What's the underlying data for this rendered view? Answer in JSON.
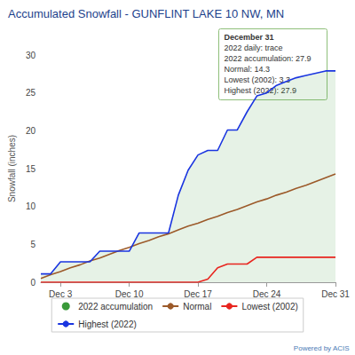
{
  "chart_data": {
    "type": "line",
    "title": "Accumulated Snowfall - GUNFLINT LAKE 10 NW, MN",
    "y_label": "Snowfall (inches)",
    "categories": [
      null,
      null,
      "Dec 3",
      null,
      null,
      null,
      null,
      null,
      null,
      "Dec 10",
      null,
      null,
      null,
      null,
      null,
      null,
      "Dec 17",
      null,
      null,
      null,
      null,
      null,
      null,
      "Dec 24",
      null,
      null,
      null,
      null,
      null,
      null,
      "Dec 31"
    ],
    "series": [
      {
        "name": "2022 accumulation",
        "type": "area",
        "color": "#3a9a3a",
        "values": [
          1.1,
          1.1,
          2.7,
          2.7,
          2.7,
          2.7,
          4.1,
          4.1,
          4.1,
          4.1,
          6.5,
          6.5,
          6.5,
          6.5,
          11.5,
          14.8,
          16.8,
          17.4,
          17.4,
          20.1,
          20.1,
          22.5,
          24.6,
          25.0,
          26.0,
          26.5,
          27.0,
          27.3,
          27.6,
          27.9,
          27.9
        ]
      },
      {
        "name": "Normal",
        "type": "line",
        "color": "#9c5a2a",
        "values": [
          0.5,
          1.0,
          1.4,
          1.9,
          2.3,
          2.8,
          3.2,
          3.7,
          4.2,
          4.6,
          5.1,
          5.5,
          6.0,
          6.4,
          6.9,
          7.4,
          7.8,
          8.3,
          8.7,
          9.2,
          9.6,
          10.1,
          10.6,
          11.0,
          11.5,
          11.9,
          12.4,
          12.8,
          13.3,
          13.8,
          14.3
        ]
      },
      {
        "name": "Lowest (2002)",
        "type": "line",
        "color": "#e8251f",
        "values": [
          0,
          0,
          0,
          0,
          0,
          0,
          0,
          0,
          0,
          0,
          0,
          0,
          0,
          0,
          0,
          0,
          0,
          0.4,
          1.9,
          2.4,
          2.4,
          2.4,
          3.3,
          3.3,
          3.3,
          3.3,
          3.3,
          3.3,
          3.3,
          3.3,
          3.3
        ]
      },
      {
        "name": "Highest (2022)",
        "type": "line",
        "color": "#1a35e0",
        "values": [
          1.1,
          1.1,
          2.7,
          2.7,
          2.7,
          2.7,
          4.1,
          4.1,
          4.1,
          4.1,
          6.5,
          6.5,
          6.5,
          6.5,
          11.5,
          14.8,
          16.8,
          17.4,
          17.4,
          20.1,
          20.1,
          22.5,
          24.6,
          25.0,
          26.0,
          26.5,
          27.0,
          27.3,
          27.6,
          27.9,
          27.9
        ]
      }
    ],
    "ylim": [
      0,
      30
    ],
    "yticks": [
      0,
      5,
      10,
      15,
      20,
      25,
      30
    ],
    "grid": false,
    "legend": "bottom",
    "annotation": [
      "December 31",
      "2022 daily: trace",
      "2022 accumulation: 27.9",
      "Normal: 14.3",
      "Lowest (2002): 3.3",
      "Highest (2022): 27.9"
    ],
    "credit": "Powered by ACIS"
  }
}
